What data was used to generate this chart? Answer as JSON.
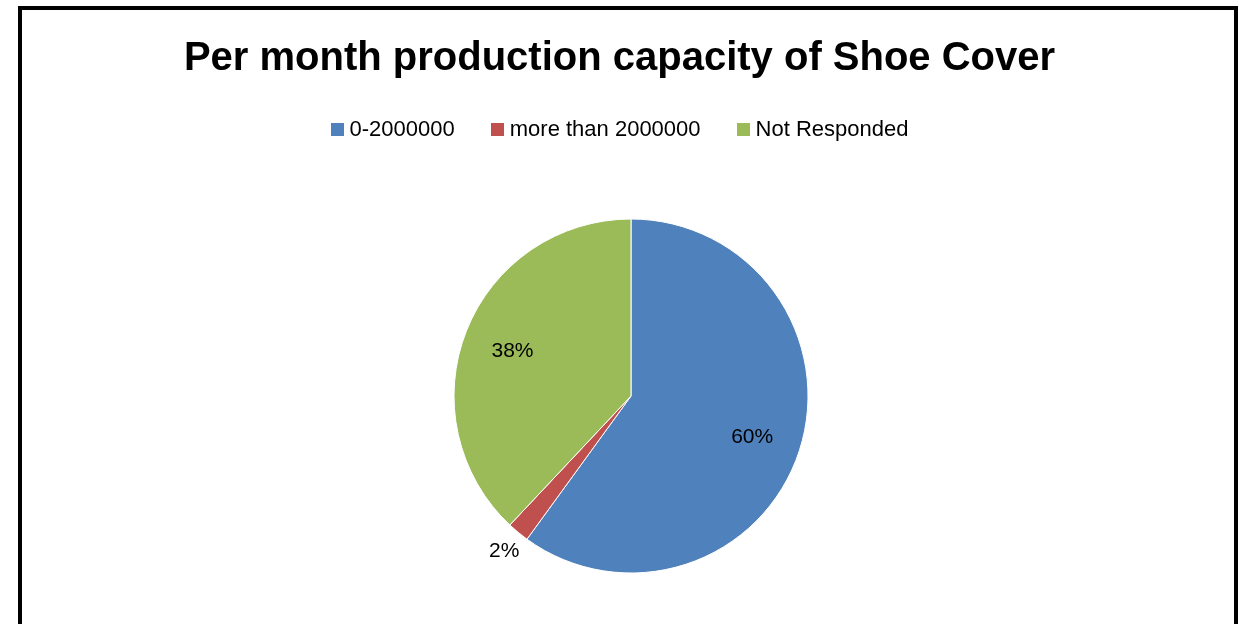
{
  "chart_data": {
    "type": "pie",
    "title": "Per month production capacity of Shoe Cover",
    "categories": [
      "0-2000000",
      "more than 2000000",
      "Not Responded"
    ],
    "values": [
      60,
      2,
      38
    ],
    "colors": [
      "#4f81bd",
      "#c0504d",
      "#9bbb59"
    ],
    "value_labels": [
      "60%",
      "2%",
      "38%"
    ],
    "legend": "top"
  }
}
